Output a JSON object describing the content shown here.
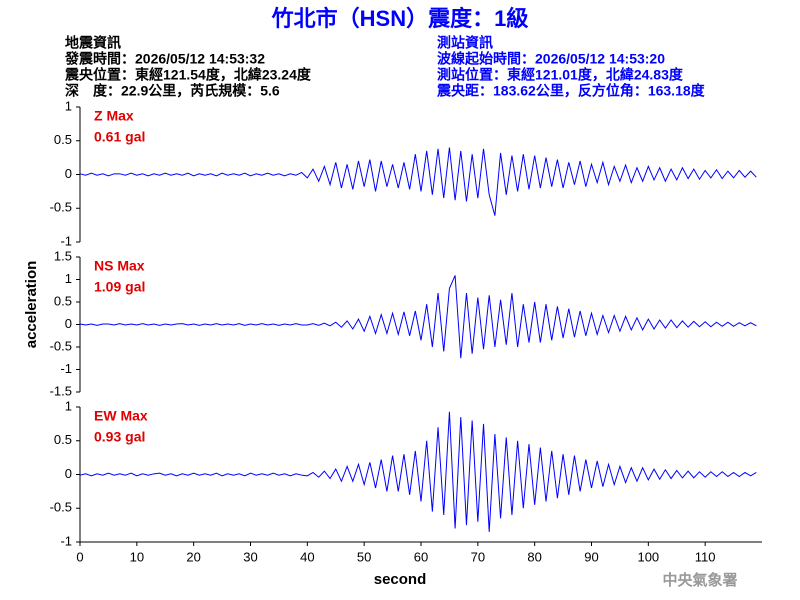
{
  "header": {
    "title": "竹北市（HSN）震度：1級",
    "quake_info": [
      "地震資訊",
      "發震時間：2026/05/12 14:53:32",
      "震央位置：東經121.54度，北緯23.24度",
      "深　度：22.9公里，芮氏規模：5.6"
    ],
    "station_info": [
      "測站資訊",
      "波線起始時間：2026/05/12 14:53:20",
      "測站位置：東經121.01度，北緯24.83度",
      "震央距：183.62公里，反方位角：163.18度"
    ],
    "watermark": "中央氣象署"
  },
  "chart_data": [
    {
      "type": "line",
      "title": "Z Max",
      "subtitle": "0.61 gal",
      "color": "#0000ff",
      "xlim": [
        0,
        120
      ],
      "ylim": [
        -1,
        1
      ],
      "yticks": [
        1,
        0.5,
        0,
        -0.5,
        -1
      ],
      "x": [
        0,
        1,
        2,
        3,
        4,
        5,
        6,
        7,
        8,
        9,
        10,
        11,
        12,
        13,
        14,
        15,
        16,
        17,
        18,
        19,
        20,
        21,
        22,
        23,
        24,
        25,
        26,
        27,
        28,
        29,
        30,
        31,
        32,
        33,
        34,
        35,
        36,
        37,
        38,
        39,
        40,
        41,
        42,
        43,
        44,
        45,
        46,
        47,
        48,
        49,
        50,
        51,
        52,
        53,
        54,
        55,
        56,
        57,
        58,
        59,
        60,
        61,
        62,
        63,
        64,
        65,
        66,
        67,
        68,
        69,
        70,
        71,
        72,
        73,
        74,
        75,
        76,
        77,
        78,
        79,
        80,
        81,
        82,
        83,
        84,
        85,
        86,
        87,
        88,
        89,
        90,
        91,
        92,
        93,
        94,
        95,
        96,
        97,
        98,
        99,
        100,
        101,
        102,
        103,
        104,
        105,
        106,
        107,
        108,
        109,
        110,
        111,
        112,
        113,
        114,
        115,
        116,
        117,
        118,
        119
      ],
      "values": [
        0.01,
        -0.01,
        0.02,
        -0.01,
        0.01,
        -0.02,
        0.01,
        0.01,
        -0.01,
        0.02,
        -0.01,
        0.01,
        -0.02,
        0.01,
        -0.01,
        0.02,
        -0.01,
        0.01,
        -0.01,
        0.02,
        -0.02,
        0.01,
        -0.01,
        0.01,
        -0.02,
        0.02,
        -0.01,
        0.01,
        -0.01,
        0.02,
        -0.02,
        0.01,
        -0.01,
        0.02,
        -0.01,
        0.01,
        -0.02,
        0.01,
        -0.01,
        0.03,
        -0.05,
        0.08,
        -0.1,
        0.12,
        -0.15,
        0.18,
        -0.2,
        0.15,
        -0.22,
        0.2,
        -0.18,
        0.22,
        -0.25,
        0.2,
        -0.18,
        0.15,
        -0.2,
        0.18,
        -0.22,
        0.3,
        -0.25,
        0.35,
        -0.3,
        0.38,
        -0.35,
        0.4,
        -0.38,
        0.35,
        -0.4,
        0.3,
        -0.35,
        0.38,
        -0.3,
        -0.61,
        0.32,
        -0.3,
        0.28,
        -0.25,
        0.3,
        -0.22,
        0.28,
        -0.2,
        0.25,
        -0.18,
        0.22,
        -0.2,
        0.18,
        -0.15,
        0.2,
        -0.18,
        0.15,
        -0.12,
        0.18,
        -0.15,
        0.12,
        -0.1,
        0.14,
        -0.12,
        0.1,
        -0.1,
        0.12,
        -0.08,
        0.1,
        -0.1,
        0.08,
        -0.08,
        0.1,
        -0.06,
        0.08,
        -0.07,
        0.06,
        -0.05,
        0.07,
        -0.06,
        0.05,
        -0.05,
        0.06,
        -0.04,
        0.05,
        -0.04
      ]
    },
    {
      "type": "line",
      "title": "NS Max",
      "subtitle": "1.09 gal",
      "color": "#0000ff",
      "y_label": "acceleration",
      "xlim": [
        0,
        120
      ],
      "ylim": [
        -1.5,
        1.5
      ],
      "yticks": [
        1.5,
        1,
        0.5,
        0,
        -0.5,
        -1,
        -1.5
      ],
      "x": [
        0,
        1,
        2,
        3,
        4,
        5,
        6,
        7,
        8,
        9,
        10,
        11,
        12,
        13,
        14,
        15,
        16,
        17,
        18,
        19,
        20,
        21,
        22,
        23,
        24,
        25,
        26,
        27,
        28,
        29,
        30,
        31,
        32,
        33,
        34,
        35,
        36,
        37,
        38,
        39,
        40,
        41,
        42,
        43,
        44,
        45,
        46,
        47,
        48,
        49,
        50,
        51,
        52,
        53,
        54,
        55,
        56,
        57,
        58,
        59,
        60,
        61,
        62,
        63,
        64,
        65,
        66,
        67,
        68,
        69,
        70,
        71,
        72,
        73,
        74,
        75,
        76,
        77,
        78,
        79,
        80,
        81,
        82,
        83,
        84,
        85,
        86,
        87,
        88,
        89,
        90,
        91,
        92,
        93,
        94,
        95,
        96,
        97,
        98,
        99,
        100,
        101,
        102,
        103,
        104,
        105,
        106,
        107,
        108,
        109,
        110,
        111,
        112,
        113,
        114,
        115,
        116,
        117,
        118,
        119
      ],
      "values": [
        0.01,
        -0.01,
        0.01,
        -0.02,
        0.01,
        0.01,
        -0.01,
        0.02,
        -0.01,
        0.01,
        -0.01,
        0.02,
        -0.01,
        0.01,
        -0.02,
        0.01,
        -0.01,
        0.01,
        0.02,
        -0.01,
        0.01,
        -0.02,
        0.01,
        -0.01,
        0.02,
        -0.01,
        0.01,
        -0.01,
        0.02,
        -0.02,
        0.01,
        -0.01,
        0.02,
        -0.01,
        0.01,
        -0.02,
        0.01,
        -0.01,
        0.02,
        -0.01,
        -0.01,
        0.02,
        -0.02,
        0.03,
        -0.03,
        0.05,
        -0.06,
        0.08,
        -0.1,
        0.12,
        -0.15,
        0.18,
        -0.2,
        0.22,
        -0.2,
        0.25,
        -0.22,
        0.28,
        -0.25,
        0.3,
        -0.35,
        0.45,
        -0.5,
        0.7,
        -0.6,
        0.8,
        1.09,
        -0.75,
        0.7,
        -0.65,
        0.6,
        -0.55,
        0.65,
        -0.5,
        0.55,
        -0.45,
        0.7,
        -0.5,
        0.45,
        -0.4,
        0.5,
        -0.4,
        0.45,
        -0.35,
        0.4,
        -0.3,
        0.35,
        -0.28,
        0.3,
        -0.25,
        0.25,
        -0.22,
        0.2,
        -0.18,
        0.2,
        -0.15,
        0.18,
        -0.12,
        0.15,
        -0.12,
        0.12,
        -0.1,
        0.1,
        -0.08,
        0.1,
        -0.07,
        0.08,
        -0.06,
        0.07,
        -0.05,
        0.06,
        -0.05,
        0.05,
        -0.04,
        0.05,
        -0.04,
        0.04,
        -0.03,
        0.04,
        -0.03
      ]
    },
    {
      "type": "line",
      "title": "EW Max",
      "subtitle": "0.93 gal",
      "color": "#0000ff",
      "x_label": "second",
      "xlim": [
        0,
        120
      ],
      "ylim": [
        -1,
        1
      ],
      "yticks": [
        1,
        0.5,
        0,
        -0.5,
        -1
      ],
      "xticks": [
        0,
        10,
        20,
        30,
        40,
        50,
        60,
        70,
        80,
        90,
        100,
        110
      ],
      "x": [
        0,
        1,
        2,
        3,
        4,
        5,
        6,
        7,
        8,
        9,
        10,
        11,
        12,
        13,
        14,
        15,
        16,
        17,
        18,
        19,
        20,
        21,
        22,
        23,
        24,
        25,
        26,
        27,
        28,
        29,
        30,
        31,
        32,
        33,
        34,
        35,
        36,
        37,
        38,
        39,
        40,
        41,
        42,
        43,
        44,
        45,
        46,
        47,
        48,
        49,
        50,
        51,
        52,
        53,
        54,
        55,
        56,
        57,
        58,
        59,
        60,
        61,
        62,
        63,
        64,
        65,
        66,
        67,
        68,
        69,
        70,
        71,
        72,
        73,
        74,
        75,
        76,
        77,
        78,
        79,
        80,
        81,
        82,
        83,
        84,
        85,
        86,
        87,
        88,
        89,
        90,
        91,
        92,
        93,
        94,
        95,
        96,
        97,
        98,
        99,
        100,
        101,
        102,
        103,
        104,
        105,
        106,
        107,
        108,
        109,
        110,
        111,
        112,
        113,
        114,
        115,
        116,
        117,
        118,
        119
      ],
      "values": [
        -0.01,
        0.01,
        -0.02,
        0.01,
        -0.01,
        0.02,
        -0.01,
        0.01,
        -0.01,
        0.02,
        -0.02,
        0.01,
        -0.01,
        0.01,
        0.02,
        -0.01,
        0.01,
        -0.02,
        0.01,
        -0.01,
        0.02,
        -0.01,
        0.01,
        -0.01,
        0.02,
        -0.02,
        0.01,
        -0.01,
        0.01,
        -0.02,
        0.02,
        -0.01,
        0.01,
        -0.01,
        0.02,
        -0.01,
        0.01,
        -0.02,
        0.01,
        -0.01,
        -0.02,
        0.03,
        -0.04,
        0.05,
        -0.06,
        0.08,
        -0.1,
        0.12,
        -0.1,
        0.15,
        -0.15,
        0.18,
        -0.2,
        0.22,
        -0.25,
        0.28,
        -0.25,
        0.3,
        -0.3,
        0.35,
        -0.4,
        0.5,
        -0.55,
        0.7,
        -0.6,
        0.93,
        -0.8,
        0.85,
        -0.75,
        0.8,
        -0.7,
        0.75,
        -0.85,
        0.6,
        -0.65,
        0.55,
        -0.6,
        0.5,
        -0.5,
        0.45,
        -0.45,
        0.4,
        -0.4,
        0.35,
        -0.35,
        0.3,
        -0.3,
        0.28,
        -0.25,
        0.22,
        -0.2,
        0.2,
        -0.18,
        0.15,
        -0.15,
        0.12,
        -0.12,
        0.1,
        -0.1,
        0.1,
        -0.08,
        0.08,
        -0.07,
        0.07,
        -0.06,
        0.06,
        -0.05,
        0.05,
        -0.05,
        0.04,
        -0.04,
        0.04,
        -0.03,
        0.04,
        -0.03,
        0.03,
        -0.03,
        0.03,
        -0.02,
        0.03
      ]
    }
  ]
}
